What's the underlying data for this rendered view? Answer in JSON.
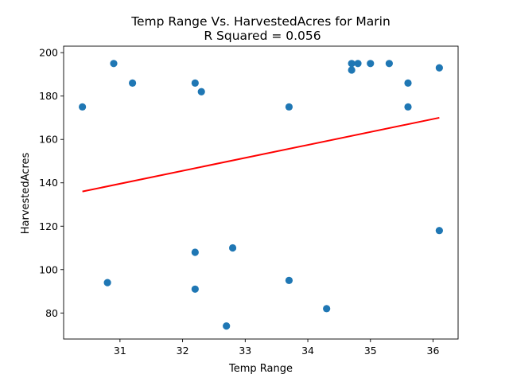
{
  "chart_data": {
    "type": "scatter",
    "title_line1": "Temp Range Vs. HarvestedAcres for Marin",
    "title_line2": "R Squared =  0.056",
    "xlabel": "Temp Range",
    "ylabel": "HarvestedAcres",
    "xlim": [
      30.1,
      36.4
    ],
    "ylim": [
      68,
      203
    ],
    "xticks": [
      31,
      32,
      33,
      34,
      35,
      36
    ],
    "yticks": [
      80,
      100,
      120,
      140,
      160,
      180,
      200
    ],
    "points": [
      {
        "x": 30.4,
        "y": 175
      },
      {
        "x": 30.8,
        "y": 94
      },
      {
        "x": 30.9,
        "y": 195
      },
      {
        "x": 31.2,
        "y": 186
      },
      {
        "x": 32.2,
        "y": 186
      },
      {
        "x": 32.2,
        "y": 108
      },
      {
        "x": 32.2,
        "y": 91
      },
      {
        "x": 32.3,
        "y": 182
      },
      {
        "x": 32.7,
        "y": 74
      },
      {
        "x": 32.8,
        "y": 110
      },
      {
        "x": 33.7,
        "y": 175
      },
      {
        "x": 33.7,
        "y": 95
      },
      {
        "x": 34.3,
        "y": 82
      },
      {
        "x": 34.7,
        "y": 195
      },
      {
        "x": 34.7,
        "y": 192
      },
      {
        "x": 34.8,
        "y": 195
      },
      {
        "x": 35.0,
        "y": 195
      },
      {
        "x": 35.3,
        "y": 195
      },
      {
        "x": 35.6,
        "y": 186
      },
      {
        "x": 35.6,
        "y": 175
      },
      {
        "x": 36.1,
        "y": 193
      },
      {
        "x": 36.1,
        "y": 118
      }
    ],
    "regression_line": {
      "x": [
        30.4,
        36.1
      ],
      "y": [
        136,
        170
      ]
    },
    "grid": false,
    "colors": {
      "points": "#1f77b4",
      "regression": "#ff0000"
    }
  }
}
